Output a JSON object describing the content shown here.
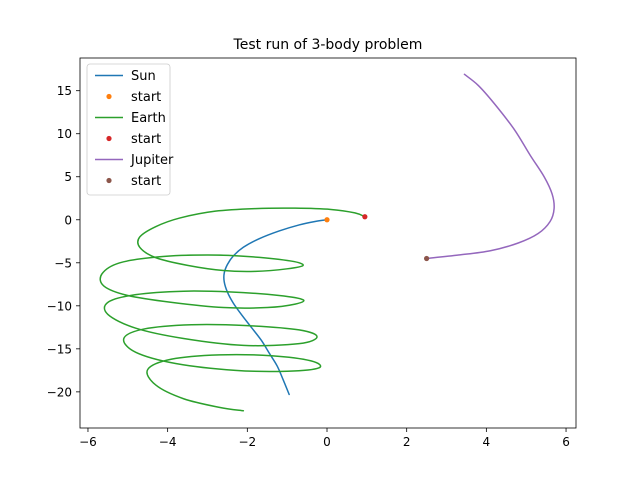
{
  "chart_data": {
    "type": "line",
    "title": "Test run of 3-body problem",
    "xlabel": "",
    "ylabel": "",
    "xlim": [
      -6.2,
      6.25
    ],
    "ylim": [
      -24.2,
      18.8
    ],
    "xticks": [
      -6,
      -4,
      -2,
      0,
      2,
      4,
      6
    ],
    "yticks": [
      -20,
      -15,
      -10,
      -5,
      0,
      5,
      10,
      15
    ],
    "xtick_labels": [
      "−6",
      "−4",
      "−2",
      "0",
      "2",
      "4",
      "6"
    ],
    "ytick_labels": [
      "−20",
      "−15",
      "−10",
      "−5",
      "0",
      "5",
      "10",
      "15"
    ],
    "grid": false,
    "legend_position": "top-left",
    "legend": [
      {
        "label": "Sun",
        "kind": "line",
        "color": "#1f77b4"
      },
      {
        "label": "start",
        "kind": "marker",
        "color": "#ff7f0e"
      },
      {
        "label": "Earth",
        "kind": "line",
        "color": "#2ca02c"
      },
      {
        "label": "start",
        "kind": "marker",
        "color": "#d62728"
      },
      {
        "label": "Jupiter",
        "kind": "line",
        "color": "#9467bd"
      },
      {
        "label": "start",
        "kind": "marker",
        "color": "#8c564b"
      }
    ],
    "series": [
      {
        "name": "Sun",
        "color": "#1f77b4",
        "start_color": "#ff7f0e",
        "points": [
          [
            0,
            0
          ],
          [
            -0.3,
            -0.2
          ],
          [
            -0.7,
            -0.6
          ],
          [
            -1.2,
            -1.3
          ],
          [
            -1.7,
            -2.2
          ],
          [
            -2.1,
            -3.2
          ],
          [
            -2.35,
            -4.2
          ],
          [
            -2.5,
            -5.2
          ],
          [
            -2.58,
            -6.2
          ],
          [
            -2.58,
            -7.2
          ],
          [
            -2.5,
            -8.4
          ],
          [
            -2.35,
            -9.7
          ],
          [
            -2.15,
            -11.0
          ],
          [
            -1.9,
            -12.5
          ],
          [
            -1.65,
            -14.0
          ],
          [
            -1.45,
            -15.5
          ],
          [
            -1.25,
            -17.0
          ],
          [
            -1.1,
            -18.6
          ],
          [
            -0.95,
            -20.3
          ]
        ]
      },
      {
        "name": "Earth",
        "color": "#2ca02c",
        "start_color": "#d62728",
        "points": [
          [
            0.95,
            0.35
          ],
          [
            0.7,
            0.8
          ],
          [
            0.1,
            1.2
          ],
          [
            -0.8,
            1.35
          ],
          [
            -1.8,
            1.3
          ],
          [
            -2.8,
            1.0
          ],
          [
            -3.7,
            0.2
          ],
          [
            -4.3,
            -0.8
          ],
          [
            -4.7,
            -2.0
          ],
          [
            -4.7,
            -3.2
          ],
          [
            -4.3,
            -4.4
          ],
          [
            -3.5,
            -5.3
          ],
          [
            -2.6,
            -5.9
          ],
          [
            -1.8,
            -6.0
          ],
          [
            -1.0,
            -5.7
          ],
          [
            -0.6,
            -5.3
          ],
          [
            -0.9,
            -4.8
          ],
          [
            -1.9,
            -4.3
          ],
          [
            -3.0,
            -4.1
          ],
          [
            -4.2,
            -4.3
          ],
          [
            -5.2,
            -5.0
          ],
          [
            -5.65,
            -6.3
          ],
          [
            -5.6,
            -7.7
          ],
          [
            -5.0,
            -8.8
          ],
          [
            -3.9,
            -9.6
          ],
          [
            -2.6,
            -10.2
          ],
          [
            -1.5,
            -10.2
          ],
          [
            -0.8,
            -9.8
          ],
          [
            -0.6,
            -9.3
          ],
          [
            -1.2,
            -8.8
          ],
          [
            -2.4,
            -8.4
          ],
          [
            -3.6,
            -8.3
          ],
          [
            -4.8,
            -8.7
          ],
          [
            -5.5,
            -9.6
          ],
          [
            -5.5,
            -11.0
          ],
          [
            -4.8,
            -12.6
          ],
          [
            -3.6,
            -13.8
          ],
          [
            -2.1,
            -14.6
          ],
          [
            -0.7,
            -14.4
          ],
          [
            -0.25,
            -13.6
          ],
          [
            -0.7,
            -12.8
          ],
          [
            -2.0,
            -12.3
          ],
          [
            -3.4,
            -12.2
          ],
          [
            -4.6,
            -12.7
          ],
          [
            -5.1,
            -13.8
          ],
          [
            -4.8,
            -15.4
          ],
          [
            -3.8,
            -16.7
          ],
          [
            -2.3,
            -17.5
          ],
          [
            -1.0,
            -17.6
          ],
          [
            -0.2,
            -17.2
          ],
          [
            -0.4,
            -16.4
          ],
          [
            -1.4,
            -15.8
          ],
          [
            -2.7,
            -15.7
          ],
          [
            -3.9,
            -16.2
          ],
          [
            -4.5,
            -17.4
          ],
          [
            -4.3,
            -19.2
          ],
          [
            -3.6,
            -20.8
          ],
          [
            -2.7,
            -21.8
          ],
          [
            -2.1,
            -22.2
          ]
        ]
      },
      {
        "name": "Jupiter",
        "color": "#9467bd",
        "start_color": "#8c564b",
        "points": [
          [
            2.5,
            -4.5
          ],
          [
            3.3,
            -4.1
          ],
          [
            4.1,
            -3.6
          ],
          [
            4.8,
            -2.7
          ],
          [
            5.3,
            -1.6
          ],
          [
            5.6,
            -0.2
          ],
          [
            5.7,
            1.3
          ],
          [
            5.65,
            3.0
          ],
          [
            5.45,
            5.0
          ],
          [
            5.1,
            7.5
          ],
          [
            4.7,
            10.5
          ],
          [
            4.2,
            13.5
          ],
          [
            3.8,
            15.6
          ],
          [
            3.45,
            16.9
          ]
        ]
      }
    ]
  }
}
